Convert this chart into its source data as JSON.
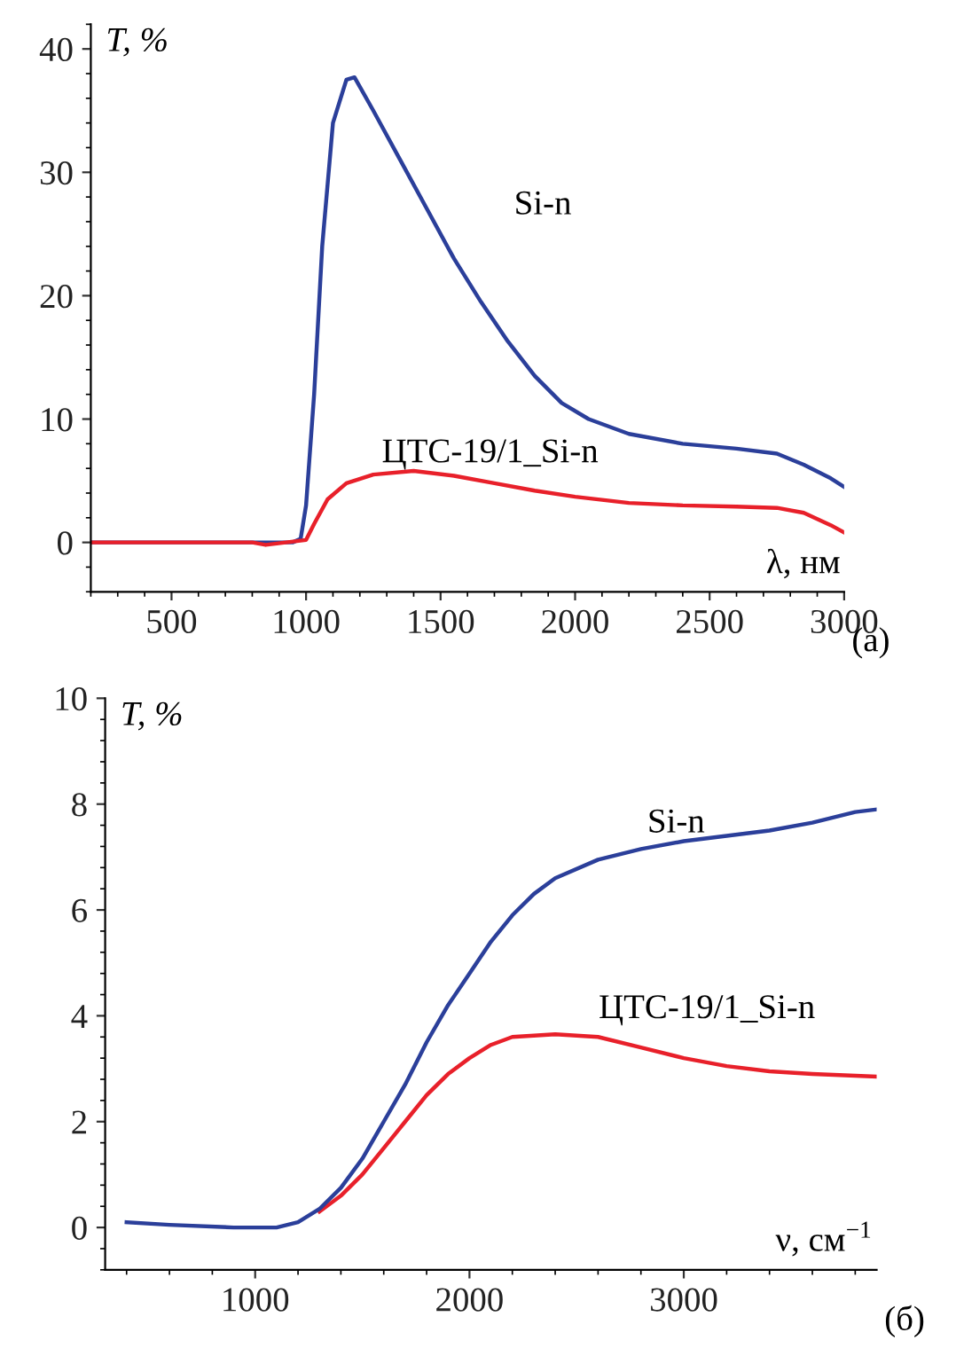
{
  "chart_data": [
    {
      "type": "line",
      "xlabel": "λ, нм",
      "ylabel": "T, %",
      "xlim": [
        200,
        3000
      ],
      "ylim": [
        -4,
        42
      ],
      "xticks": [
        500,
        1000,
        1500,
        2000,
        2500,
        3000
      ],
      "yticks": [
        0,
        10,
        20,
        30,
        40
      ],
      "legend": false,
      "grid": false,
      "marker": "none",
      "line_style": "solid",
      "annotations": [
        "(a)"
      ],
      "series": [
        {
          "name": "Si-n",
          "color": "#2b3f9a",
          "x": [
            200,
            800,
            950,
            980,
            1000,
            1030,
            1060,
            1100,
            1150,
            1180,
            1250,
            1350,
            1450,
            1550,
            1650,
            1750,
            1850,
            1950,
            2050,
            2200,
            2400,
            2600,
            2750,
            2850,
            2950,
            3000
          ],
          "values": [
            0,
            0,
            0,
            0.3,
            3,
            12,
            24,
            34,
            37.5,
            37.7,
            35,
            31,
            27,
            23,
            19.5,
            16.3,
            13.5,
            11.3,
            10,
            8.8,
            8,
            7.6,
            7.2,
            6.3,
            5.2,
            4.5
          ]
        },
        {
          "name": "ЦТС-19/1_Si-n",
          "color": "#e8202a",
          "x": [
            200,
            800,
            850,
            1000,
            1030,
            1080,
            1150,
            1250,
            1400,
            1550,
            1700,
            1850,
            2000,
            2200,
            2400,
            2600,
            2750,
            2850,
            2950,
            3000
          ],
          "values": [
            0,
            0,
            -0.2,
            0.2,
            1.5,
            3.5,
            4.8,
            5.5,
            5.8,
            5.4,
            4.8,
            4.2,
            3.7,
            3.2,
            3.0,
            2.9,
            2.8,
            2.4,
            1.4,
            0.8
          ]
        }
      ]
    },
    {
      "type": "line",
      "xlabel": "ν, см$^{−1}$",
      "ylabel": "T, %",
      "xlim": [
        300,
        3900
      ],
      "ylim": [
        -0.8,
        10
      ],
      "xticks": [
        1000,
        2000,
        3000
      ],
      "yticks": [
        0,
        2,
        4,
        6,
        8,
        10
      ],
      "legend": false,
      "grid": false,
      "marker": "none",
      "line_style": "solid",
      "annotations": [
        "(б)"
      ],
      "series": [
        {
          "name": "ЦТС-19/1_Si-n",
          "color": "#e8202a",
          "x": [
            1300,
            1400,
            1500,
            1600,
            1700,
            1800,
            1900,
            2000,
            2100,
            2200,
            2400,
            2600,
            2800,
            3000,
            3200,
            3400,
            3600,
            3900
          ],
          "values": [
            0.3,
            0.6,
            1.0,
            1.5,
            2.0,
            2.5,
            2.9,
            3.2,
            3.45,
            3.6,
            3.65,
            3.6,
            3.4,
            3.2,
            3.05,
            2.95,
            2.9,
            2.85
          ]
        },
        {
          "name": "Si-n",
          "color": "#2b3f9a",
          "x": [
            400,
            600,
            900,
            1100,
            1200,
            1300,
            1400,
            1500,
            1600,
            1700,
            1800,
            1900,
            2000,
            2100,
            2200,
            2300,
            2400,
            2600,
            2800,
            3000,
            3200,
            3400,
            3600,
            3700,
            3800,
            3900
          ],
          "values": [
            0.1,
            0.05,
            0,
            0,
            0.1,
            0.35,
            0.75,
            1.3,
            2.0,
            2.7,
            3.5,
            4.2,
            4.8,
            5.4,
            5.9,
            6.3,
            6.6,
            6.95,
            7.15,
            7.3,
            7.4,
            7.5,
            7.65,
            7.75,
            7.85,
            7.9
          ]
        }
      ]
    }
  ]
}
